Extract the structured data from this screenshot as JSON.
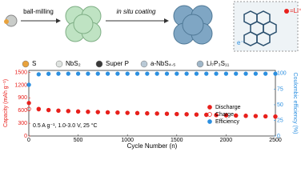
{
  "schematic": {
    "step1": "ball-milling",
    "step2": "in situ coating",
    "electron": "e⁻",
    "ion": "=Li⁺"
  },
  "materials": [
    {
      "name": "S",
      "color": "#e8a23c"
    },
    {
      "name": "NbS₂",
      "color": "#dfe3e0"
    },
    {
      "name": "Super P",
      "color": "#3a3a3a"
    },
    {
      "name": "a-NbS₄.₅",
      "color": "#b9c9d6"
    },
    {
      "name": "Li₇P₃S₁₁",
      "color": "#9fb6c8"
    }
  ],
  "chart_data": {
    "type": "scatter",
    "xlabel": "Cycle Number (n)",
    "ylabel": "Capacity (mAh g⁻¹)",
    "y2label": "Coulombic efficiency (%)",
    "annotation": "0.5 A g⁻¹, 1.0-3.0 V, 25 °C",
    "x": [
      1,
      100,
      200,
      300,
      400,
      500,
      600,
      700,
      800,
      900,
      1000,
      1100,
      1200,
      1300,
      1400,
      1500,
      1600,
      1700,
      1800,
      1900,
      2000,
      2100,
      2200,
      2300,
      2400,
      2500
    ],
    "series": [
      {
        "name": "Discharge",
        "color": "#e8201c",
        "marker": "filled",
        "values": [
          780,
          640,
          615,
          600,
          590,
          580,
          573,
          566,
          560,
          555,
          548,
          542,
          537,
          532,
          526,
          520,
          514,
          508,
          502,
          496,
          490,
          485,
          478,
          472,
          466,
          460
        ]
      },
      {
        "name": "Charge",
        "color": "#e8201c",
        "marker": "open",
        "values": [
          640,
          632,
          612,
          598,
          588,
          578,
          571,
          564,
          558,
          553,
          546,
          540,
          535,
          530,
          524,
          518,
          512,
          506,
          500,
          494,
          488,
          483,
          476,
          470,
          464,
          458
        ]
      },
      {
        "name": "Efficiency",
        "color": "#2b8fe0",
        "marker": "filled",
        "axis": "y2",
        "values": [
          82,
          98.8,
          99.5,
          99.7,
          99.7,
          99.7,
          99.7,
          99.7,
          99.7,
          99.7,
          99.7,
          99.7,
          99.7,
          99.7,
          99.7,
          99.7,
          99.7,
          99.7,
          99.7,
          99.7,
          99.7,
          99.7,
          99.7,
          99.7,
          99.7,
          99.7
        ]
      }
    ],
    "xlim": [
      0,
      2500
    ],
    "xticks": [
      0,
      500,
      1000,
      1500,
      2000,
      2500
    ],
    "ylim": [
      0,
      1550
    ],
    "yticks": [
      0,
      300,
      600,
      900,
      1200,
      1500
    ],
    "y2lim": [
      0,
      105
    ],
    "y2ticks": [
      0,
      25,
      50,
      75,
      100
    ],
    "ycolor": "#e8201c",
    "y2color": "#2b8fe0"
  }
}
